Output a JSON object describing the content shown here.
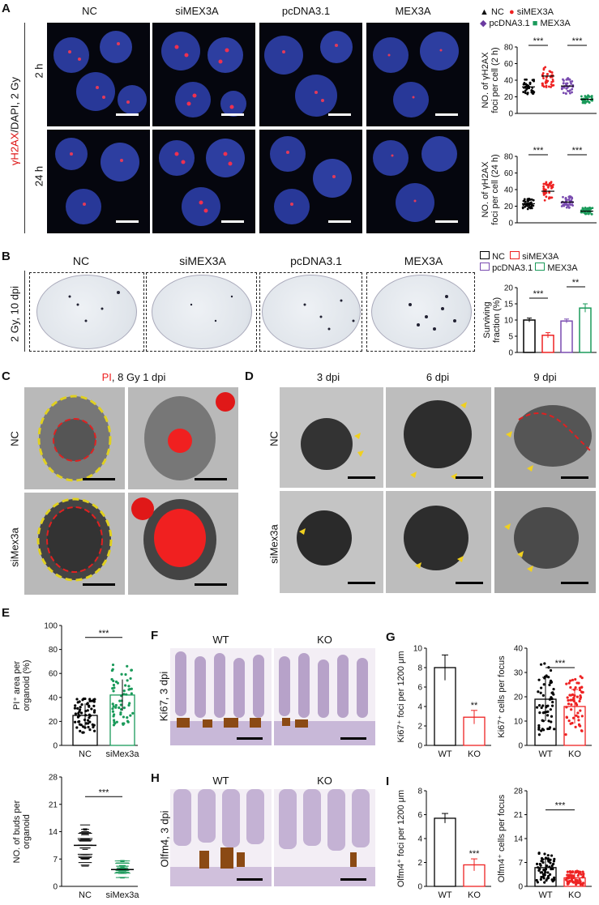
{
  "panels": {
    "A": {
      "label": "A",
      "columns": [
        "NC",
        "siMEX3A",
        "pcDNA3.1",
        "MEX3A"
      ],
      "row_labels": [
        "2 h",
        "24 h"
      ],
      "side_label_red": "γH2AX",
      "side_label_rest": "/DAPI, 2 Gy",
      "legend": [
        "NC",
        "siMEX3A",
        "pcDNA3.1",
        "MEX3A"
      ],
      "plot1_ylabel": [
        "NO. of γH2AX",
        "foci per cell (2 h)"
      ],
      "plot2_ylabel": [
        "NO. of γH2AX",
        "foci per cell (24 h)"
      ],
      "plot1_ticks": [
        "0",
        "20",
        "40",
        "60",
        "80"
      ],
      "plot2_ticks": [
        "0",
        "20",
        "40",
        "60",
        "80"
      ],
      "sig": [
        "***",
        "***"
      ]
    },
    "B": {
      "label": "B",
      "columns": [
        "NC",
        "siMEX3A",
        "pcDNA3.1",
        "MEX3A"
      ],
      "side_label": "2 Gy, 10 dpi",
      "legend": [
        "NC",
        "siMEX3A",
        "pcDNA3.1",
        "MEX3A"
      ],
      "ylabel": [
        "Surviving",
        "fraction (%)"
      ],
      "ticks": [
        "0",
        "5",
        "10",
        "15",
        "20"
      ],
      "sig": [
        "***",
        "**"
      ]
    },
    "C": {
      "label": "C",
      "title_red": "PI",
      "title_rest": ", 8 Gy 1 dpi",
      "row_labels": [
        "NC",
        "siMex3a"
      ]
    },
    "D": {
      "label": "D",
      "columns": [
        "3 dpi",
        "6 dpi",
        "9 dpi"
      ],
      "row_labels": [
        "NC",
        "siMex3a"
      ]
    },
    "E": {
      "label": "E",
      "plot1_ylabel": [
        "PI⁺ area per",
        "organoid (%)"
      ],
      "plot1_ticks": [
        "0",
        "20",
        "40",
        "60",
        "80",
        "100"
      ],
      "plot2_ylabel": [
        "NO. of buds per",
        "organoid"
      ],
      "plot2_ticks": [
        "0",
        "7",
        "14",
        "21",
        "28"
      ],
      "xcats": [
        "NC",
        "siMex3a"
      ],
      "sig": "***"
    },
    "F": {
      "label": "F",
      "columns": [
        "WT",
        "KO"
      ],
      "side_label": "Ki67, 3 dpi"
    },
    "G": {
      "label": "G",
      "plot1_ylabel": [
        "Ki67⁺ foci per 1200 μm"
      ],
      "plot1_ticks": [
        "0",
        "2",
        "4",
        "6",
        "8",
        "10"
      ],
      "plot2_ylabel": [
        "Ki67⁺ cells per focus"
      ],
      "plot2_ticks": [
        "0",
        "10",
        "20",
        "30",
        "40"
      ],
      "xcats": [
        "WT",
        "KO"
      ],
      "sig1": "**",
      "sig2": "***"
    },
    "H": {
      "label": "H",
      "columns": [
        "WT",
        "KO"
      ],
      "side_label": "Olfm4, 3 dpi"
    },
    "I": {
      "label": "I",
      "plot1_ylabel": [
        "Olfm4⁺ foci per 1200 μm"
      ],
      "plot1_ticks": [
        "0",
        "2",
        "4",
        "6",
        "8"
      ],
      "plot2_ylabel": [
        "Olfm4⁺ cells per focus"
      ],
      "plot2_ticks": [
        "0",
        "7",
        "14",
        "21",
        "28"
      ],
      "xcats": [
        "WT",
        "KO"
      ],
      "sig1": "***",
      "sig2": "***"
    }
  },
  "chart_data": [
    {
      "type": "scatter",
      "panel": "A-2h",
      "ylim": [
        0,
        80
      ],
      "series": [
        {
          "name": "NC",
          "values": [
            32
          ]
        },
        {
          "name": "siMEX3A",
          "values": [
            45
          ]
        },
        {
          "name": "pcDNA3.1",
          "values": [
            33
          ]
        },
        {
          "name": "MEX3A",
          "values": [
            17
          ]
        }
      ]
    },
    {
      "type": "scatter",
      "panel": "A-24h",
      "ylim": [
        0,
        80
      ],
      "series": [
        {
          "name": "NC",
          "values": [
            23
          ]
        },
        {
          "name": "siMEX3A",
          "values": [
            38
          ]
        },
        {
          "name": "pcDNA3.1",
          "values": [
            25
          ]
        },
        {
          "name": "MEX3A",
          "values": [
            14
          ]
        }
      ]
    },
    {
      "type": "bar",
      "panel": "B",
      "categories": [
        "NC",
        "siMEX3A",
        "pcDNA3.1",
        "MEX3A"
      ],
      "values": [
        10,
        5.3,
        9.7,
        13.7
      ],
      "errors": [
        0.6,
        0.8,
        0.6,
        1.3
      ],
      "ylim": [
        0,
        20
      ]
    },
    {
      "type": "bar",
      "panel": "E-top",
      "categories": [
        "NC",
        "siMex3a"
      ],
      "values": [
        25,
        42
      ],
      "errors": [
        10,
        13
      ],
      "ylim": [
        0,
        100
      ]
    },
    {
      "type": "scatter",
      "panel": "E-bottom",
      "categories": [
        "NC",
        "siMex3a"
      ],
      "values": [
        10.5,
        4.3
      ],
      "errors": [
        2.8,
        2.2
      ],
      "ylim": [
        0,
        28
      ]
    },
    {
      "type": "bar",
      "panel": "G-left",
      "categories": [
        "WT",
        "KO"
      ],
      "values": [
        8,
        2.9
      ],
      "errors": [
        1.3,
        0.7
      ],
      "ylim": [
        0,
        10
      ]
    },
    {
      "type": "bar",
      "panel": "G-right",
      "categories": [
        "WT",
        "KO"
      ],
      "values": [
        19,
        16
      ],
      "errors": [
        9,
        7
      ],
      "ylim": [
        0,
        40
      ]
    },
    {
      "type": "bar",
      "panel": "I-left",
      "categories": [
        "WT",
        "KO"
      ],
      "values": [
        5.7,
        1.8
      ],
      "errors": [
        0.4,
        0.5
      ],
      "ylim": [
        0,
        8
      ]
    },
    {
      "type": "bar",
      "panel": "I-right",
      "categories": [
        "WT",
        "KO"
      ],
      "values": [
        5.5,
        2.5
      ],
      "errors": [
        2.5,
        1.5
      ],
      "ylim": [
        0,
        28
      ]
    }
  ]
}
